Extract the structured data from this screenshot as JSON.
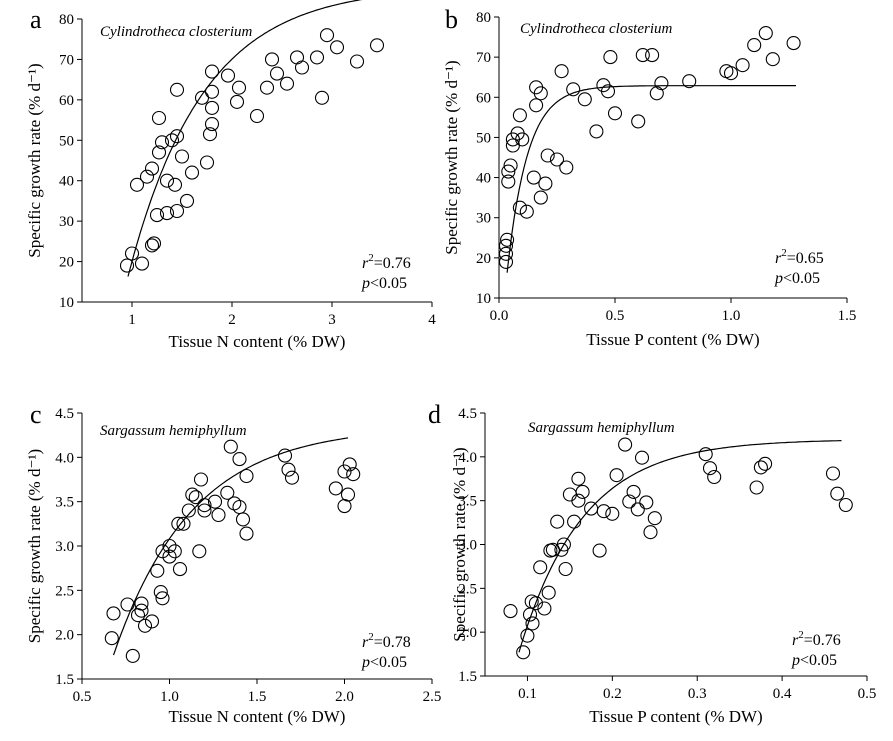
{
  "chart_data": [
    {
      "type": "scatter",
      "panel_letter": "a",
      "species_label": "Cylindrotheca closterium",
      "xlabel": "Tissue N content (% DW)",
      "ylabel": "Specific growth rate (% d⁻¹)",
      "xlim": [
        0.5,
        4
      ],
      "ylim": [
        10,
        80
      ],
      "x_ticks": [
        1,
        2,
        3,
        4
      ],
      "y_ticks": [
        10,
        20,
        30,
        40,
        50,
        60,
        70,
        80
      ],
      "r2_label": "r",
      "r2_value": "=0.76",
      "p_label": "p",
      "p_value": "<0.05",
      "fit": {
        "model": "saturating",
        "ymax": 88,
        "k": 0.75,
        "x0": 0.96,
        "xend": 3.45
      },
      "points": [
        [
          0.95,
          19
        ],
        [
          1.0,
          22
        ],
        [
          1.1,
          19.5
        ],
        [
          1.05,
          39
        ],
        [
          1.15,
          41
        ],
        [
          1.2,
          43
        ],
        [
          1.2,
          24
        ],
        [
          1.22,
          24.5
        ],
        [
          1.25,
          31.5
        ],
        [
          1.27,
          47
        ],
        [
          1.3,
          49.5
        ],
        [
          1.27,
          55.5
        ],
        [
          1.35,
          40
        ],
        [
          1.35,
          32
        ],
        [
          1.4,
          50
        ],
        [
          1.43,
          39
        ],
        [
          1.45,
          32.5
        ],
        [
          1.45,
          51
        ],
        [
          1.45,
          62.5
        ],
        [
          1.5,
          46
        ],
        [
          1.55,
          35
        ],
        [
          1.6,
          42
        ],
        [
          1.7,
          60.5
        ],
        [
          1.75,
          44.5
        ],
        [
          1.78,
          51.5
        ],
        [
          1.8,
          54
        ],
        [
          1.8,
          58
        ],
        [
          1.8,
          62
        ],
        [
          1.8,
          67
        ],
        [
          1.96,
          66
        ],
        [
          2.05,
          59.5
        ],
        [
          2.07,
          63
        ],
        [
          2.25,
          56
        ],
        [
          2.35,
          63
        ],
        [
          2.4,
          70
        ],
        [
          2.45,
          66.5
        ],
        [
          2.55,
          64
        ],
        [
          2.65,
          70.5
        ],
        [
          2.7,
          68
        ],
        [
          2.85,
          70.5
        ],
        [
          2.9,
          60.5
        ],
        [
          2.95,
          76
        ],
        [
          3.05,
          73
        ],
        [
          3.25,
          69.5
        ],
        [
          3.45,
          73.5
        ]
      ]
    },
    {
      "type": "scatter",
      "panel_letter": "b",
      "species_label": "Cylindrotheca closterium",
      "xlabel": "Tissue P content (% DW)",
      "ylabel": "Specific growth rate (% d⁻¹)",
      "xlim": [
        0,
        1.5
      ],
      "ylim": [
        10,
        80
      ],
      "x_ticks": [
        0.0,
        0.5,
        1.0,
        1.5
      ],
      "y_ticks": [
        10,
        20,
        30,
        40,
        50,
        60,
        70,
        80
      ],
      "r2_label": "r",
      "r2_value": "=0.65",
      "p_label": "p",
      "p_value": "<0.05",
      "fit": {
        "model": "saturating",
        "ymax": 62.9,
        "k": 0.088,
        "x0": 0.035,
        "xend": 1.28
      },
      "points": [
        [
          0.03,
          19
        ],
        [
          0.03,
          21
        ],
        [
          0.03,
          23
        ],
        [
          0.035,
          24.5
        ],
        [
          0.04,
          39
        ],
        [
          0.04,
          41.5
        ],
        [
          0.05,
          43
        ],
        [
          0.06,
          48
        ],
        [
          0.06,
          49.5
        ],
        [
          0.08,
          51
        ],
        [
          0.09,
          55.5
        ],
        [
          0.09,
          32.5
        ],
        [
          0.1,
          49.5
        ],
        [
          0.12,
          31.5
        ],
        [
          0.15,
          40
        ],
        [
          0.16,
          58
        ],
        [
          0.16,
          62.5
        ],
        [
          0.18,
          35
        ],
        [
          0.18,
          61
        ],
        [
          0.2,
          38.5
        ],
        [
          0.21,
          45.5
        ],
        [
          0.25,
          44.5
        ],
        [
          0.27,
          66.5
        ],
        [
          0.29,
          42.5
        ],
        [
          0.32,
          62
        ],
        [
          0.37,
          59.5
        ],
        [
          0.42,
          51.5
        ],
        [
          0.45,
          63
        ],
        [
          0.47,
          61.5
        ],
        [
          0.48,
          70
        ],
        [
          0.5,
          56
        ],
        [
          0.6,
          54
        ],
        [
          0.62,
          70.5
        ],
        [
          0.66,
          70.5
        ],
        [
          0.68,
          61
        ],
        [
          0.7,
          63.5
        ],
        [
          0.82,
          64
        ],
        [
          0.98,
          66.5
        ],
        [
          1.0,
          66
        ],
        [
          1.05,
          68
        ],
        [
          1.1,
          73
        ],
        [
          1.15,
          76
        ],
        [
          1.18,
          69.5
        ],
        [
          1.27,
          73.5
        ]
      ]
    },
    {
      "type": "scatter",
      "panel_letter": "c",
      "species_label": "Sargassum hemiphyllum",
      "xlabel": "Tissue N content (% DW)",
      "ylabel": "Specific growth rate (% d⁻¹)",
      "xlim": [
        0.5,
        2.5
      ],
      "ylim": [
        1.5,
        4.5
      ],
      "x_ticks": [
        0.5,
        1.0,
        1.5,
        2.0,
        2.5
      ],
      "y_ticks": [
        1.5,
        2.0,
        2.5,
        3.0,
        3.5,
        4.0,
        4.5
      ],
      "r2_label": "r",
      "r2_value": "=0.78",
      "p_label": "p",
      "p_value": "<0.05",
      "fit": {
        "model": "saturating",
        "ymax": 4.35,
        "k": 0.45,
        "x0": 0.68,
        "xend": 2.02
      },
      "points": [
        [
          0.67,
          1.96
        ],
        [
          0.68,
          2.24
        ],
        [
          0.76,
          2.34
        ],
        [
          0.79,
          1.76
        ],
        [
          0.82,
          2.22
        ],
        [
          0.84,
          2.35
        ],
        [
          0.84,
          2.27
        ],
        [
          0.86,
          2.1
        ],
        [
          0.9,
          2.15
        ],
        [
          0.93,
          2.72
        ],
        [
          0.95,
          2.48
        ],
        [
          0.96,
          2.41
        ],
        [
          0.96,
          2.94
        ],
        [
          1.0,
          3.0
        ],
        [
          1.0,
          2.88
        ],
        [
          1.03,
          2.94
        ],
        [
          1.05,
          3.25
        ],
        [
          1.06,
          2.74
        ],
        [
          1.08,
          3.25
        ],
        [
          1.11,
          3.4
        ],
        [
          1.13,
          3.58
        ],
        [
          1.15,
          3.55
        ],
        [
          1.17,
          2.94
        ],
        [
          1.18,
          3.75
        ],
        [
          1.2,
          3.4
        ],
        [
          1.2,
          3.46
        ],
        [
          1.26,
          3.5
        ],
        [
          1.28,
          3.35
        ],
        [
          1.33,
          3.6
        ],
        [
          1.35,
          4.12
        ],
        [
          1.37,
          3.48
        ],
        [
          1.4,
          3.98
        ],
        [
          1.4,
          3.44
        ],
        [
          1.42,
          3.3
        ],
        [
          1.44,
          3.14
        ],
        [
          1.44,
          3.79
        ],
        [
          1.66,
          4.02
        ],
        [
          1.68,
          3.86
        ],
        [
          1.7,
          3.77
        ],
        [
          1.95,
          3.65
        ],
        [
          2.0,
          3.84
        ],
        [
          2.0,
          3.45
        ],
        [
          2.02,
          3.58
        ],
        [
          2.03,
          3.92
        ],
        [
          2.05,
          3.81
        ]
      ]
    },
    {
      "type": "scatter",
      "panel_letter": "d",
      "species_label": "Sargassum hemiphyllum",
      "xlabel": "Tissue P content (% DW)",
      "ylabel": "Specific growth rate (% d⁻¹)",
      "xlim": [
        0.05,
        0.5
      ],
      "ylim": [
        1.5,
        4.5
      ],
      "x_ticks": [
        0.1,
        0.2,
        0.3,
        0.4,
        0.5
      ],
      "y_ticks": [
        1.5,
        2.0,
        2.5,
        3.0,
        3.5,
        4.0,
        4.5
      ],
      "r2_label": "r",
      "r2_value": "=0.76",
      "p_label": "p",
      "p_value": "<0.05",
      "fit": {
        "model": "saturating",
        "ymax": 4.2,
        "k": 0.075,
        "x0": 0.09,
        "xend": 0.47
      },
      "points": [
        [
          0.08,
          2.24
        ],
        [
          0.095,
          1.77
        ],
        [
          0.1,
          1.96
        ],
        [
          0.103,
          2.2
        ],
        [
          0.105,
          2.35
        ],
        [
          0.106,
          2.1
        ],
        [
          0.11,
          2.33
        ],
        [
          0.115,
          2.74
        ],
        [
          0.12,
          2.27
        ],
        [
          0.125,
          2.45
        ],
        [
          0.127,
          2.93
        ],
        [
          0.13,
          2.94
        ],
        [
          0.135,
          3.26
        ],
        [
          0.14,
          2.94
        ],
        [
          0.143,
          3.0
        ],
        [
          0.145,
          2.72
        ],
        [
          0.15,
          3.57
        ],
        [
          0.155,
          3.26
        ],
        [
          0.16,
          3.75
        ],
        [
          0.16,
          3.5
        ],
        [
          0.165,
          3.6
        ],
        [
          0.175,
          3.41
        ],
        [
          0.185,
          2.93
        ],
        [
          0.19,
          3.38
        ],
        [
          0.2,
          3.35
        ],
        [
          0.205,
          3.79
        ],
        [
          0.215,
          4.14
        ],
        [
          0.22,
          3.49
        ],
        [
          0.225,
          3.6
        ],
        [
          0.23,
          3.4
        ],
        [
          0.235,
          3.99
        ],
        [
          0.24,
          3.48
        ],
        [
          0.245,
          3.14
        ],
        [
          0.25,
          3.3
        ],
        [
          0.31,
          4.03
        ],
        [
          0.315,
          3.87
        ],
        [
          0.32,
          3.77
        ],
        [
          0.37,
          3.65
        ],
        [
          0.375,
          3.88
        ],
        [
          0.38,
          3.92
        ],
        [
          0.46,
          3.81
        ],
        [
          0.465,
          3.58
        ],
        [
          0.475,
          3.45
        ]
      ]
    }
  ]
}
